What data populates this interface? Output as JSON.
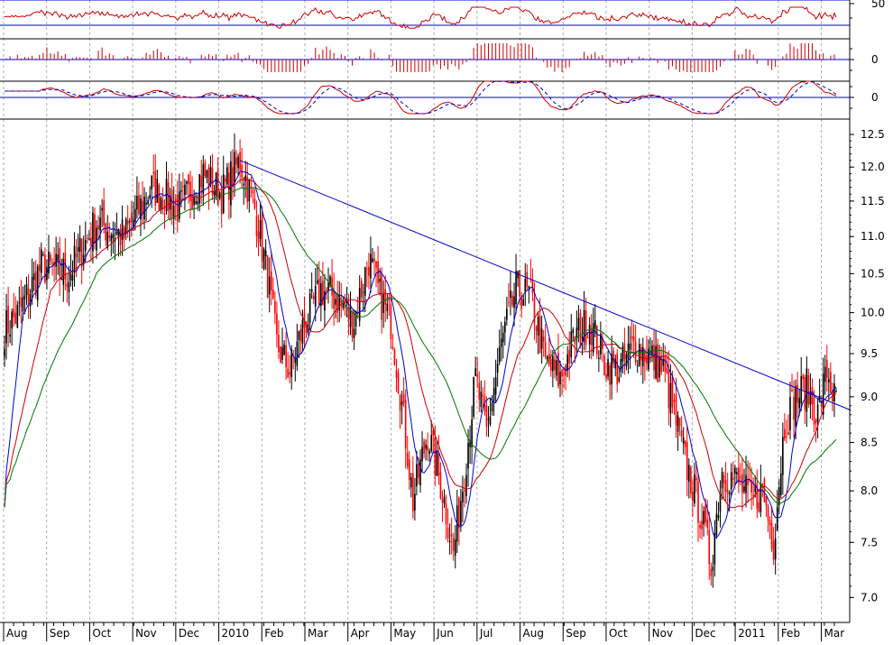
{
  "chart_data": {
    "type": "candlestick",
    "title": "",
    "colors": {
      "up": "#000000",
      "down": "#ff0000",
      "ma_short": "#0000cc",
      "ma_mid": "#cc0000",
      "ma_long": "#007700",
      "trendline": "#0000cc",
      "grid": "#999999",
      "indicator": "#cc0000",
      "signal": "#0000cc",
      "level_line": "#0000cc"
    },
    "price_axis": {
      "ticks": [
        "12.5",
        "12.0",
        "11.5",
        "11.0",
        "10.5",
        "10.0",
        "9.5",
        "9.0",
        "8.5",
        "8.0",
        "7.5",
        "7.0"
      ],
      "ylim": [
        6.8,
        12.6
      ],
      "scale": "log"
    },
    "x_axis": {
      "labels": [
        "Aug",
        "Sep",
        "Oct",
        "Nov",
        "Dec",
        "2010",
        "Feb",
        "Mar",
        "Apr",
        "May",
        "Jun",
        "Jul",
        "Aug",
        "Sep",
        "Oct",
        "Nov",
        "Dec",
        "2011",
        "Feb",
        "Mar"
      ]
    },
    "indicator_panels": [
      {
        "name": "oscillator",
        "tick_label": "50",
        "levels": [
          70,
          30
        ]
      },
      {
        "name": "histogram",
        "tick_label": "0"
      },
      {
        "name": "momentum",
        "tick_label": "0"
      }
    ],
    "price_anchors": [
      [
        0,
        9.8
      ],
      [
        8,
        10.0
      ],
      [
        20,
        10.6
      ],
      [
        35,
        10.5
      ],
      [
        50,
        11.2
      ],
      [
        65,
        11.0
      ],
      [
        80,
        11.7
      ],
      [
        95,
        11.4
      ],
      [
        108,
        11.9
      ],
      [
        118,
        11.6
      ],
      [
        128,
        12.1
      ],
      [
        136,
        11.4
      ],
      [
        142,
        10.6
      ],
      [
        148,
        9.6
      ],
      [
        155,
        9.3
      ],
      [
        162,
        9.8
      ],
      [
        172,
        10.3
      ],
      [
        180,
        10.2
      ],
      [
        190,
        9.9
      ],
      [
        198,
        10.7
      ],
      [
        204,
        10.2
      ],
      [
        210,
        9.9
      ],
      [
        216,
        8.9
      ],
      [
        222,
        7.9
      ],
      [
        230,
        8.6
      ],
      [
        238,
        8.0
      ],
      [
        244,
        7.4
      ],
      [
        250,
        8.2
      ],
      [
        256,
        9.2
      ],
      [
        262,
        8.6
      ],
      [
        270,
        9.6
      ],
      [
        278,
        10.3
      ],
      [
        286,
        10.2
      ],
      [
        294,
        9.4
      ],
      [
        302,
        9.2
      ],
      [
        310,
        9.7
      ],
      [
        318,
        9.9
      ],
      [
        326,
        9.4
      ],
      [
        334,
        9.3
      ],
      [
        342,
        9.6
      ],
      [
        350,
        9.5
      ],
      [
        358,
        9.3
      ],
      [
        364,
        8.8
      ],
      [
        370,
        8.3
      ],
      [
        378,
        7.8
      ],
      [
        384,
        7.3
      ],
      [
        390,
        8.2
      ],
      [
        398,
        8.1
      ],
      [
        406,
        7.9
      ],
      [
        412,
        8.0
      ],
      [
        418,
        7.5
      ],
      [
        424,
        8.7
      ],
      [
        430,
        9.0
      ],
      [
        436,
        9.1
      ],
      [
        442,
        8.8
      ],
      [
        447,
        9.3
      ],
      [
        452,
        8.9
      ]
    ],
    "bar_count": 453,
    "trendline": {
      "from": [
        128,
        12.1
      ],
      "to": [
        460,
        8.85
      ]
    }
  }
}
